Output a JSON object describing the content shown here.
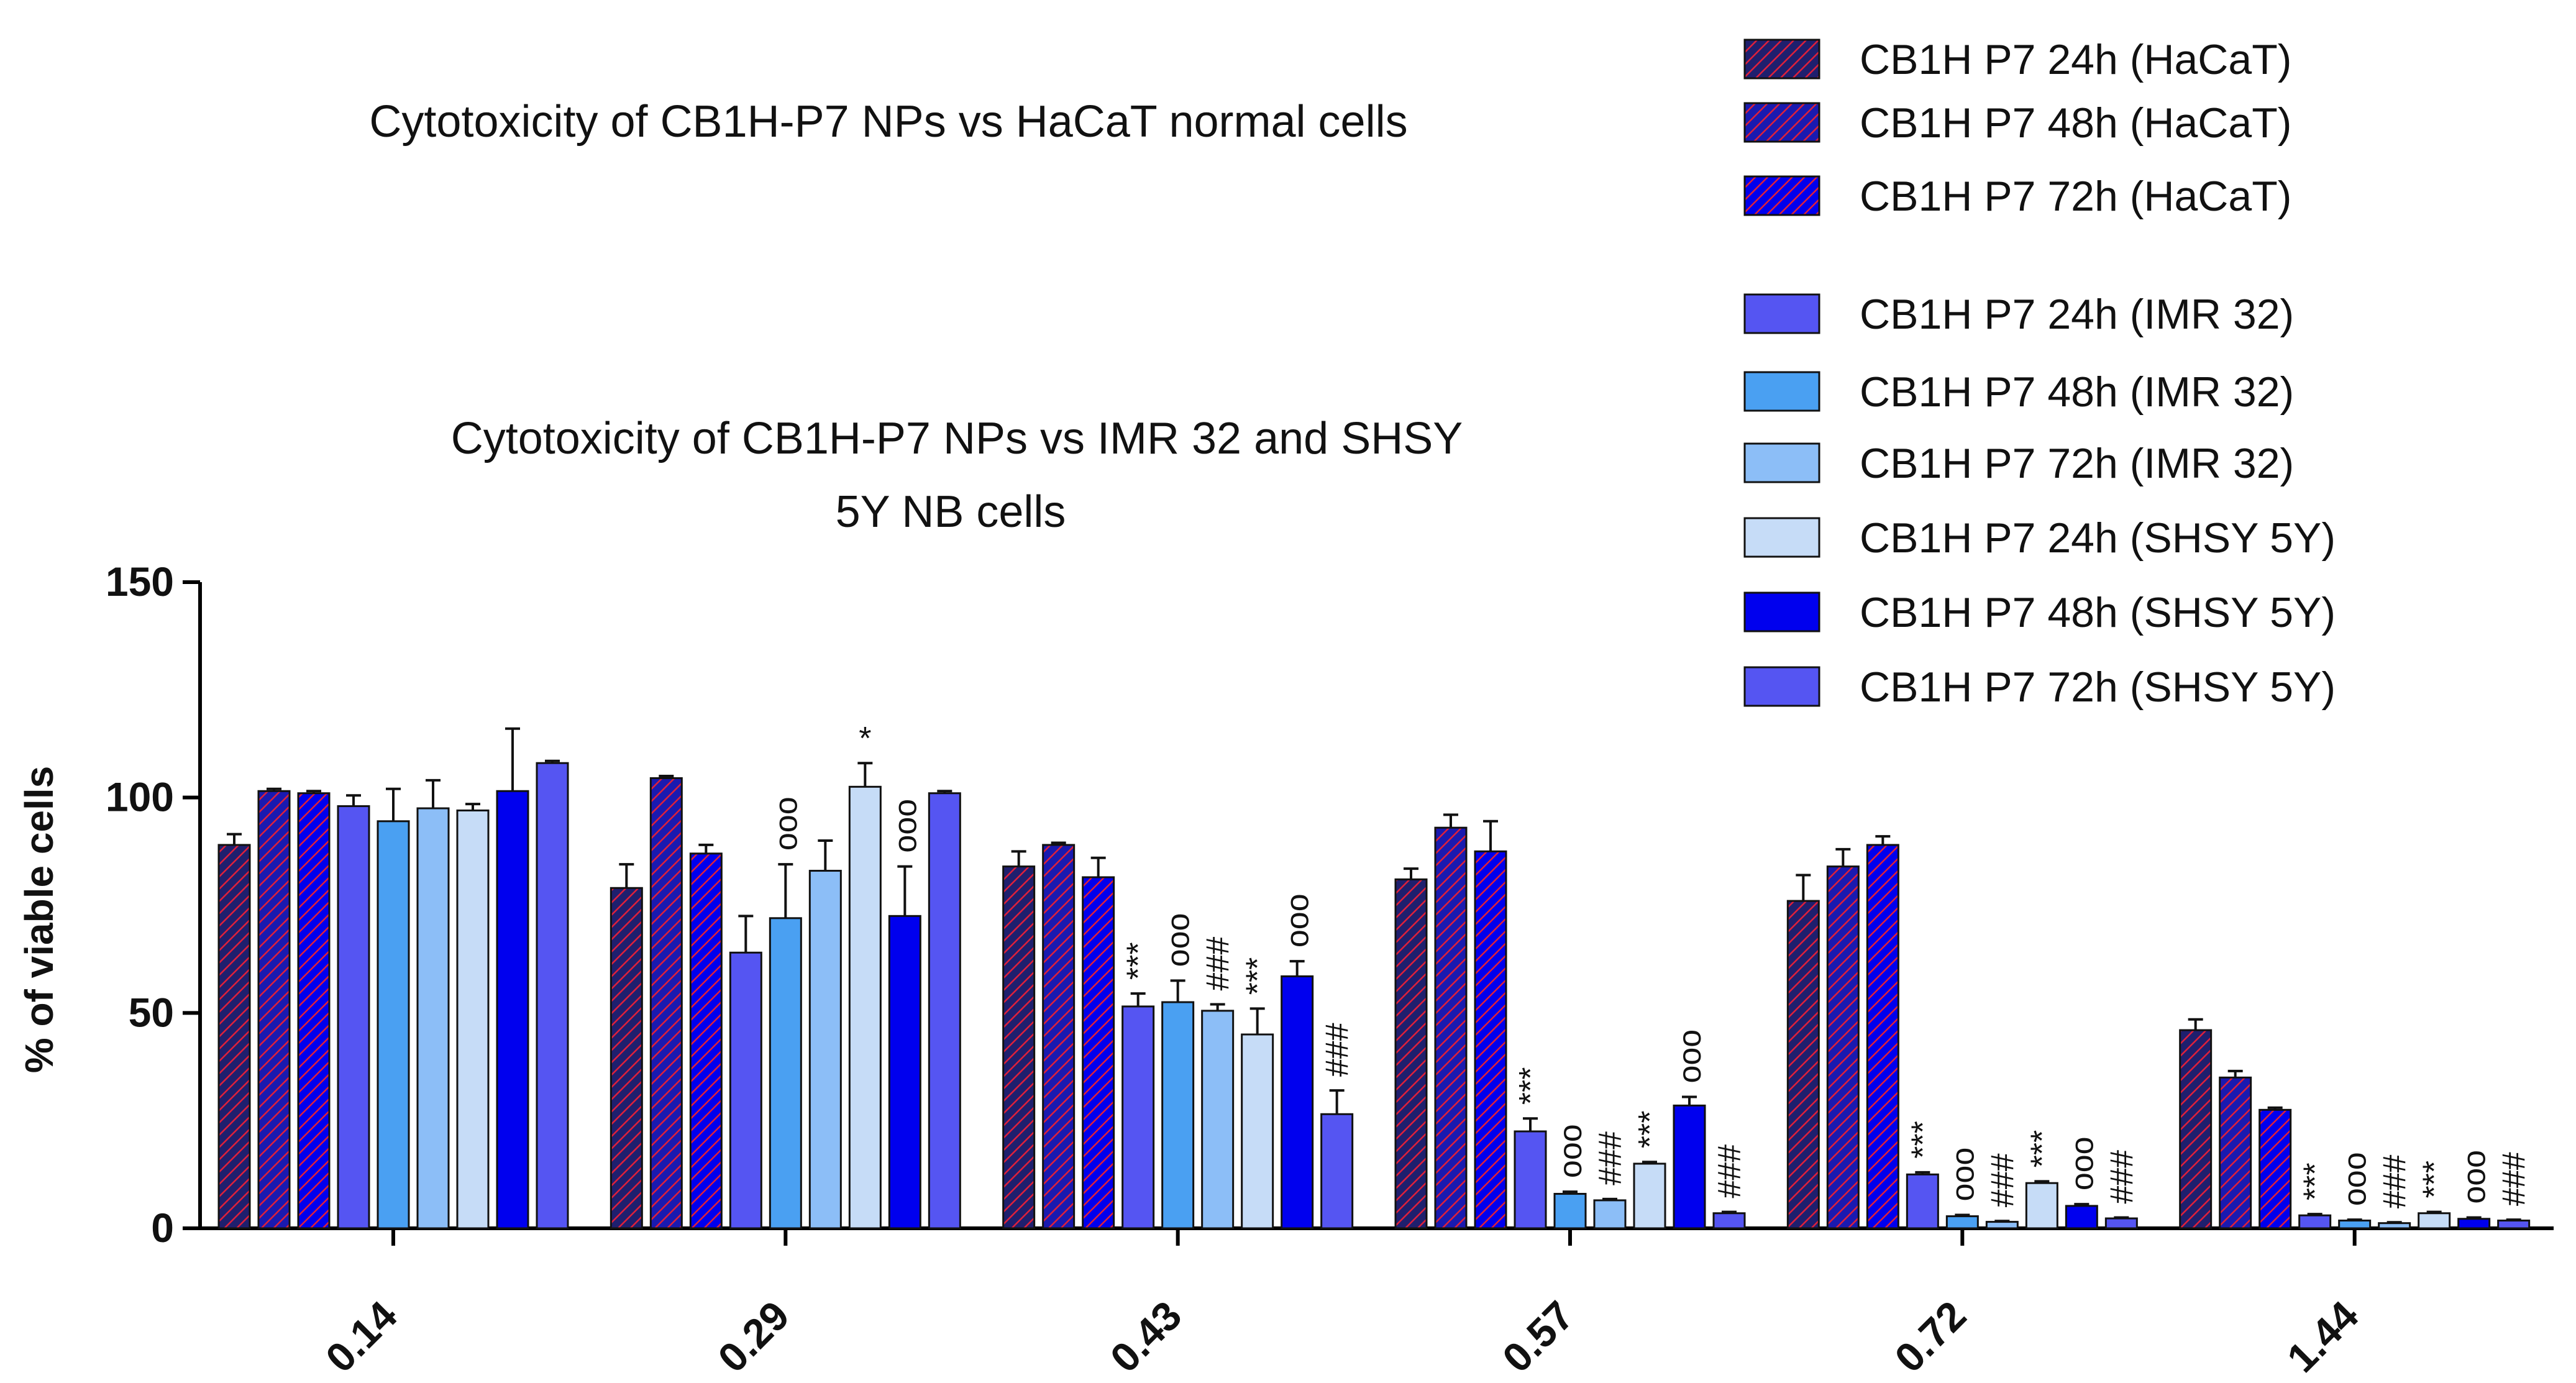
{
  "chart_data": {
    "type": "bar",
    "titles": [
      "Cytotoxicity of CB1H-P7 NPs vs HaCaT normal cells",
      "Cytotoxicity of CB1H-P7 NPs vs IMR 32 and SHSY",
      "5Y NB cells"
    ],
    "ylabel": "% of viable cells",
    "xlabel": "",
    "ylim": [
      0,
      150
    ],
    "yticks": [
      "0",
      "50",
      "100",
      "150"
    ],
    "categories": [
      "0.14",
      "0.29",
      "0.43",
      "0.57",
      "0.72",
      "1.44"
    ],
    "series": [
      {
        "name": "CB1H P7 24h (HaCaT)",
        "color": "#1f1f6e",
        "hatch": true,
        "values": [
          89,
          79,
          84,
          81,
          76,
          46
        ],
        "errors": [
          2.5,
          5.5,
          3.5,
          2.5,
          6.0,
          2.5
        ],
        "annotations": [
          "",
          "",
          "",
          "",
          "",
          ""
        ]
      },
      {
        "name": "CB1H P7 48h (HaCaT)",
        "color": "#1a1ab0",
        "hatch": true,
        "values": [
          101.5,
          104.5,
          89,
          93,
          84,
          35
        ],
        "errors": [
          0.5,
          0.5,
          0.5,
          3.0,
          4.0,
          1.5
        ],
        "annotations": [
          "",
          "",
          "",
          "",
          "",
          ""
        ]
      },
      {
        "name": "CB1H P7 72h (HaCaT)",
        "color": "#0000ee",
        "hatch": true,
        "values": [
          101,
          87,
          81.5,
          87.5,
          89,
          27.5
        ],
        "errors": [
          0.5,
          2.0,
          4.5,
          7.0,
          2.0,
          0.5
        ],
        "annotations": [
          "",
          "",
          "",
          "",
          "",
          ""
        ]
      },
      {
        "name": "CB1H P7 24h (IMR 32)",
        "color": "#5555f2",
        "hatch": false,
        "values": [
          98,
          64,
          51.5,
          22.5,
          12.5,
          3
        ],
        "errors": [
          2.5,
          8.5,
          3.0,
          3.0,
          0.5,
          0.3
        ],
        "annotations": [
          "",
          "",
          "***",
          "***",
          "***",
          "***"
        ]
      },
      {
        "name": "CB1H P7 48h (IMR 32)",
        "color": "#4aa0f2",
        "hatch": false,
        "values": [
          94.5,
          72,
          52.5,
          8,
          2.8,
          1.8
        ],
        "errors": [
          7.5,
          12.5,
          5.0,
          0.5,
          0.3,
          0.2
        ],
        "annotations": [
          "",
          "ooo",
          "ooo",
          "ooo",
          "ooo",
          "ooo"
        ]
      },
      {
        "name": "CB1H P7 72h (IMR 32)",
        "color": "#8cbef7",
        "hatch": false,
        "values": [
          97.5,
          83,
          50.5,
          6.5,
          1.5,
          1.2
        ],
        "errors": [
          6.5,
          7.0,
          1.5,
          0.3,
          0.2,
          0.2
        ],
        "annotations": [
          "",
          "",
          "###",
          "###",
          "###",
          "###"
        ]
      },
      {
        "name": "CB1H P7 24h (SHSY 5Y)",
        "color": "#c6dcf7",
        "hatch": false,
        "values": [
          97,
          102.5,
          45,
          15,
          10.5,
          3.5
        ],
        "errors": [
          1.5,
          5.5,
          6.0,
          0.4,
          0.4,
          0.3
        ],
        "annotations": [
          "",
          "*",
          "***",
          "***",
          "***",
          "***"
        ]
      },
      {
        "name": "CB1H P7 48h (SHSY 5Y)",
        "color": "#0000ee",
        "hatch": false,
        "values": [
          101.5,
          72.5,
          58.5,
          28.5,
          5.2,
          2.2
        ],
        "errors": [
          14.5,
          11.5,
          3.5,
          2.0,
          0.4,
          0.3
        ],
        "annotations": [
          "",
          "ooo",
          "ooo",
          "ooo",
          "ooo",
          "ooo"
        ]
      },
      {
        "name": "CB1H P7 72h (SHSY 5Y)",
        "color": "#5555f2",
        "hatch": false,
        "values": [
          108,
          101,
          26.5,
          3.5,
          2.3,
          1.8
        ],
        "errors": [
          0.5,
          0.5,
          5.5,
          0.3,
          0.2,
          0.2
        ],
        "annotations": [
          "",
          "",
          "###",
          "###",
          "###",
          "###"
        ]
      }
    ],
    "legend_position": "top-right"
  }
}
